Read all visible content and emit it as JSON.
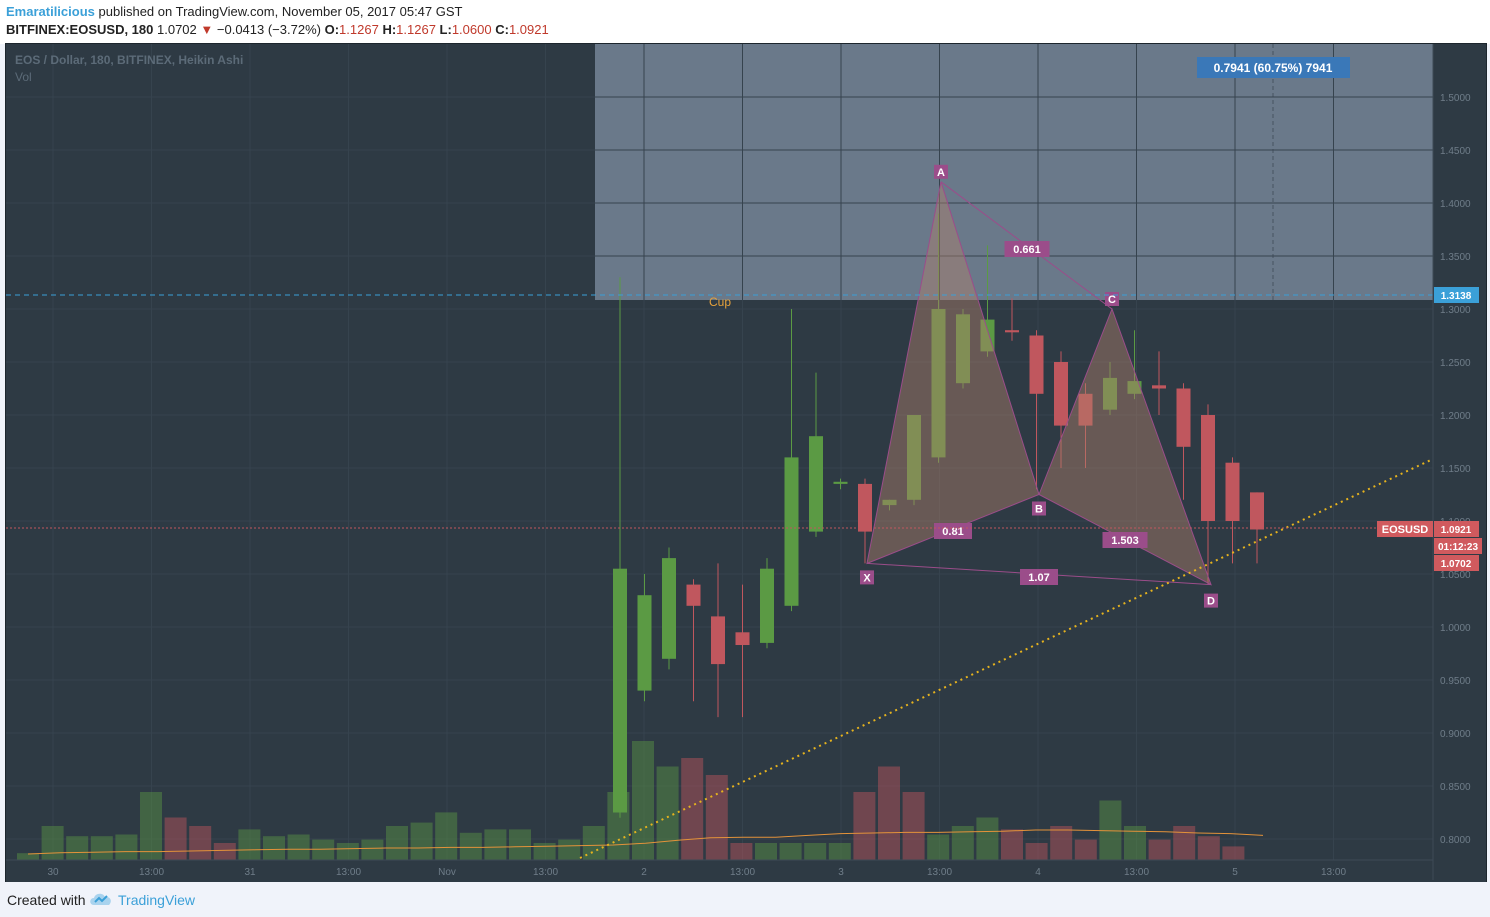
{
  "header": {
    "author": "Emaratilicious",
    "published_text": "published on TradingView.com, November 05, 2017 05:47 GST",
    "symbol": "BITFINEX:EOSUSD, 180",
    "last": "1.0702",
    "change_arrow": "▼",
    "change": "−0.0413 (−3.72%)",
    "o_label": "O:",
    "o_value": "1.1267",
    "h_label": "H:",
    "h_value": "1.1267",
    "l_label": "L:",
    "l_value": "1.0600",
    "c_label": "C:",
    "c_value": "1.0921"
  },
  "footer": {
    "created_with": "Created with",
    "brand": "TradingView",
    "logo_icon": "tradingview-cloud-icon"
  },
  "colors": {
    "background": "#2e3a44",
    "up": "#5b9a44",
    "down": "#c0575e",
    "pattern": "#9b4d8a",
    "trendline": "#e6b31e",
    "zone": "#b4c7e0",
    "accent": "#3ba0d8"
  },
  "chart_data": {
    "type": "candlestick",
    "title": "EOS / Dollar, 180, BITFINEX, Heikin Ashi",
    "volume_label": "Vol",
    "x_ticks": [
      "30",
      "13:00",
      "31",
      "13:00",
      "Nov",
      "13:00",
      "2",
      "13:00",
      "3",
      "13:00",
      "4",
      "13:00",
      "5",
      "13:00"
    ],
    "y_ticks": [
      "1.5000",
      "1.4500",
      "1.4000",
      "1.3500",
      "1.3000",
      "1.2500",
      "1.2000",
      "1.1500",
      "1.1000",
      "1.0500",
      "1.0000",
      "0.9500",
      "0.9000",
      "0.8500",
      "0.8000"
    ],
    "ylim": [
      0.775,
      1.56
    ],
    "candles_heikin_ashi": [
      {
        "o": 0.825,
        "h": 1.33,
        "l": 0.82,
        "c": 1.055
      },
      {
        "o": 0.94,
        "h": 1.05,
        "l": 0.93,
        "c": 1.03
      },
      {
        "o": 0.97,
        "h": 1.075,
        "l": 0.96,
        "c": 1.065
      },
      {
        "o": 1.04,
        "h": 1.045,
        "l": 0.93,
        "c": 1.02
      },
      {
        "o": 1.01,
        "h": 1.06,
        "l": 0.915,
        "c": 0.965
      },
      {
        "o": 0.995,
        "h": 1.04,
        "l": 0.915,
        "c": 0.983
      },
      {
        "o": 0.985,
        "h": 1.065,
        "l": 0.98,
        "c": 1.055
      },
      {
        "o": 1.02,
        "h": 1.3,
        "l": 1.015,
        "c": 1.16
      },
      {
        "o": 1.09,
        "h": 1.24,
        "l": 1.085,
        "c": 1.18
      },
      {
        "o": 1.135,
        "h": 1.14,
        "l": 1.13,
        "c": 1.137
      },
      {
        "o": 1.135,
        "h": 1.14,
        "l": 1.06,
        "c": 1.09
      },
      {
        "o": 1.115,
        "h": 1.12,
        "l": 1.11,
        "c": 1.12
      },
      {
        "o": 1.12,
        "h": 1.2,
        "l": 1.115,
        "c": 1.2
      },
      {
        "o": 1.16,
        "h": 1.39,
        "l": 1.155,
        "c": 1.3
      },
      {
        "o": 1.23,
        "h": 1.3,
        "l": 1.225,
        "c": 1.295
      },
      {
        "o": 1.26,
        "h": 1.36,
        "l": 1.255,
        "c": 1.29
      },
      {
        "o": 1.28,
        "h": 1.31,
        "l": 1.27,
        "c": 1.278
      },
      {
        "o": 1.275,
        "h": 1.28,
        "l": 1.13,
        "c": 1.22
      },
      {
        "o": 1.25,
        "h": 1.26,
        "l": 1.15,
        "c": 1.19
      },
      {
        "o": 1.22,
        "h": 1.23,
        "l": 1.15,
        "c": 1.19
      },
      {
        "o": 1.205,
        "h": 1.25,
        "l": 1.2,
        "c": 1.235
      },
      {
        "o": 1.22,
        "h": 1.28,
        "l": 1.215,
        "c": 1.232
      },
      {
        "o": 1.228,
        "h": 1.26,
        "l": 1.2,
        "c": 1.225
      },
      {
        "o": 1.225,
        "h": 1.23,
        "l": 1.12,
        "c": 1.17
      },
      {
        "o": 1.2,
        "h": 1.21,
        "l": 1.04,
        "c": 1.1
      },
      {
        "o": 1.155,
        "h": 1.16,
        "l": 1.06,
        "c": 1.1
      },
      {
        "o": 1.127,
        "h": 1.127,
        "l": 1.06,
        "c": 1.092
      }
    ],
    "volume": {
      "up": [
        4,
        20,
        14,
        14,
        15,
        40,
        25,
        20,
        10,
        18,
        14,
        15,
        12,
        10,
        12,
        20,
        22,
        28,
        16,
        18,
        18,
        10,
        12,
        20,
        40,
        70,
        55,
        60,
        50,
        10,
        10,
        10,
        10,
        10,
        40,
        55,
        40,
        15,
        20,
        25,
        18,
        10,
        20,
        12,
        35,
        20,
        12,
        20,
        14,
        8
      ],
      "ma": [
        0.1,
        0.12,
        0.13,
        0.14,
        0.14,
        0.15,
        0.16,
        0.17,
        0.18,
        0.18,
        0.19,
        0.2,
        0.2,
        0.21,
        0.21,
        0.22,
        0.23,
        0.24,
        0.25,
        0.28,
        0.33,
        0.37,
        0.38,
        0.38,
        0.41,
        0.44,
        0.45,
        0.46,
        0.46,
        0.47,
        0.48,
        0.5,
        0.5,
        0.49,
        0.48,
        0.47,
        0.45,
        0.44,
        0.41
      ]
    },
    "pattern": {
      "points": [
        {
          "label": "X",
          "price": 1.06
        },
        {
          "label": "A",
          "price": 1.42
        },
        {
          "label": "B",
          "price": 1.125
        },
        {
          "label": "C",
          "price": 1.3
        },
        {
          "label": "D",
          "price": 1.04
        }
      ],
      "ratios": [
        "0.661",
        "0.81",
        "1.503",
        "1.07"
      ]
    },
    "annotations": {
      "cup_label": "Cup",
      "measure_label": "0.7941 (60.75%) 7941",
      "hline_price": "1.3138",
      "symbol_tag": "EOSUSD",
      "current_price": "1.0921",
      "countdown": "01:12:23",
      "last_price": "1.0702"
    }
  }
}
